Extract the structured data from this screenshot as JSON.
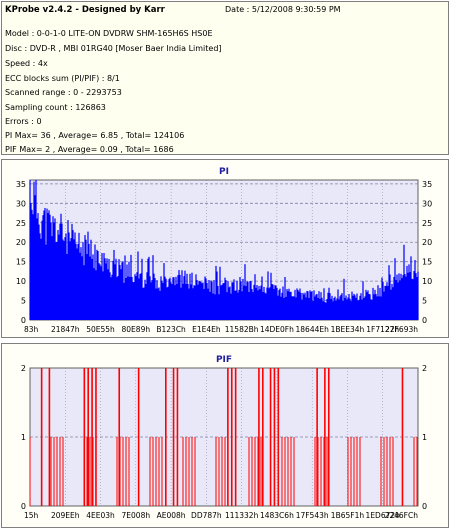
{
  "header": {
    "title": "KProbe v2.4.2 - Designed by Karr",
    "date": "Date : 5/12/2008 9:30:59 PM",
    "lines": [
      "Model : 0-0-1-0 LITE-ON DVDRW SHM-165H6S HS0E",
      "Disc : DVD-R , MBI 01RG40 [Moser Baer India Limited]",
      "Speed : 4x",
      "ECC blocks sum (PI/PIF) : 8/1",
      "Scanned range : 0 - 2293753",
      "Sampling count : 126863",
      "Errors : 0",
      "PI Max= 36 , Average= 6.85 , Total= 124106",
      "PIF Max= 2 , Average= 0.09 , Total= 1686"
    ]
  },
  "colors": {
    "pi": "#0000ff",
    "pif": "#ff0000",
    "grid": "#8080a0",
    "plot_bg": "#e8e8f8"
  },
  "chart_data": [
    {
      "type": "area",
      "title": "PI",
      "x_tick_labels": [
        "83h",
        "21847h",
        "50E55h",
        "80E89h",
        "B123Ch",
        "E1E4Eh",
        "11582Bh",
        "14DE0Fh",
        "18644Eh",
        "1BEE34h",
        "1F7127h",
        "22F693h"
      ],
      "y_ticks": [
        0,
        5,
        10,
        15,
        20,
        25,
        30,
        35
      ],
      "ylim": [
        0,
        36
      ],
      "grid": true,
      "series_envelope": [
        [
          0,
          36
        ],
        [
          1,
          33
        ],
        [
          2,
          30
        ],
        [
          3,
          28
        ],
        [
          4,
          26
        ],
        [
          6,
          25
        ],
        [
          8,
          24
        ],
        [
          10,
          22
        ],
        [
          12,
          20
        ],
        [
          14,
          19
        ],
        [
          16,
          18
        ],
        [
          18,
          16
        ],
        [
          20,
          15
        ],
        [
          22,
          14
        ],
        [
          24,
          13
        ],
        [
          26,
          13
        ],
        [
          28,
          12
        ],
        [
          30,
          11
        ],
        [
          33,
          10
        ],
        [
          36,
          12
        ],
        [
          40,
          11
        ],
        [
          44,
          10
        ],
        [
          48,
          9
        ],
        [
          52,
          9
        ],
        [
          56,
          10
        ],
        [
          60,
          9
        ],
        [
          64,
          8
        ],
        [
          68,
          7
        ],
        [
          72,
          7
        ],
        [
          76,
          6
        ],
        [
          80,
          7
        ],
        [
          84,
          6
        ],
        [
          88,
          7
        ],
        [
          92,
          9
        ],
        [
          96,
          12
        ],
        [
          98,
          15
        ],
        [
          100,
          13
        ]
      ]
    },
    {
      "type": "bar",
      "title": "PIF",
      "x_tick_labels": [
        "15h",
        "209EEh",
        "4EE03h",
        "7E008h",
        "AE008h",
        "DD787h",
        "111332h",
        "1483C6h",
        "17F543h",
        "1B65F1h",
        "1ED672h",
        "2246FCh"
      ],
      "y_ticks": [
        0,
        1,
        2
      ],
      "ylim": [
        0,
        2
      ],
      "grid": true,
      "spikes_value_2": [
        3,
        5,
        14,
        15,
        16,
        17,
        23,
        28,
        35,
        37,
        38,
        51,
        52,
        53,
        59,
        60,
        62,
        63,
        64,
        74,
        76,
        77,
        96
      ]
    }
  ]
}
